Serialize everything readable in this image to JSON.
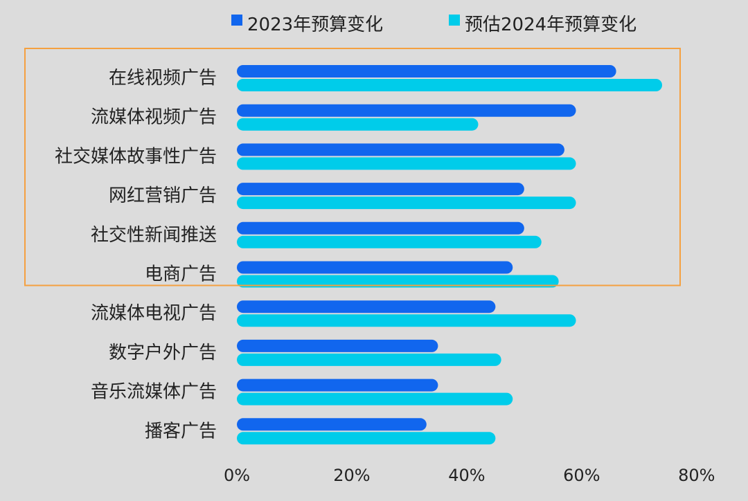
{
  "chart_data": {
    "type": "bar",
    "orientation": "horizontal",
    "categories": [
      "在线视频广告",
      "流媒体视频广告",
      "社交媒体故事性广告",
      "网红营销广告",
      "社交性新闻推送",
      "电商广告",
      "流媒体电视广告",
      "数字户外广告",
      "音乐流媒体广告",
      "播客广告"
    ],
    "series": [
      {
        "name": "2023年预算变化",
        "color": "#1166ee",
        "values": [
          66,
          59,
          57,
          50,
          50,
          48,
          45,
          35,
          35,
          33
        ]
      },
      {
        "name": "预估2024年预算变化",
        "color": "#00ccea",
        "values": [
          74,
          42,
          59,
          59,
          53,
          56,
          59,
          46,
          48,
          45
        ]
      }
    ],
    "x_ticks": [
      "0%",
      "20%",
      "40%",
      "60%",
      "80%"
    ],
    "xlim": [
      0,
      80
    ],
    "grid": false,
    "legend_position": "top",
    "highlight": {
      "from_category": "在线视频广告",
      "to_category": "电商广告",
      "color": "#f5a040"
    }
  }
}
